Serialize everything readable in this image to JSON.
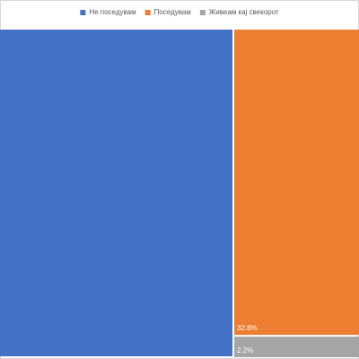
{
  "chart_data": {
    "type": "treemap",
    "categories": [
      "Не поседувам",
      "Поседувам",
      "Живеам кај свекорот"
    ],
    "values": [
      65,
      32.8,
      2.2
    ],
    "value_labels": [
      null,
      "32.8%",
      "2.2%"
    ],
    "colors": [
      "#4472c4",
      "#ed7d31",
      "#a5a5a5"
    ],
    "legend": "top"
  }
}
